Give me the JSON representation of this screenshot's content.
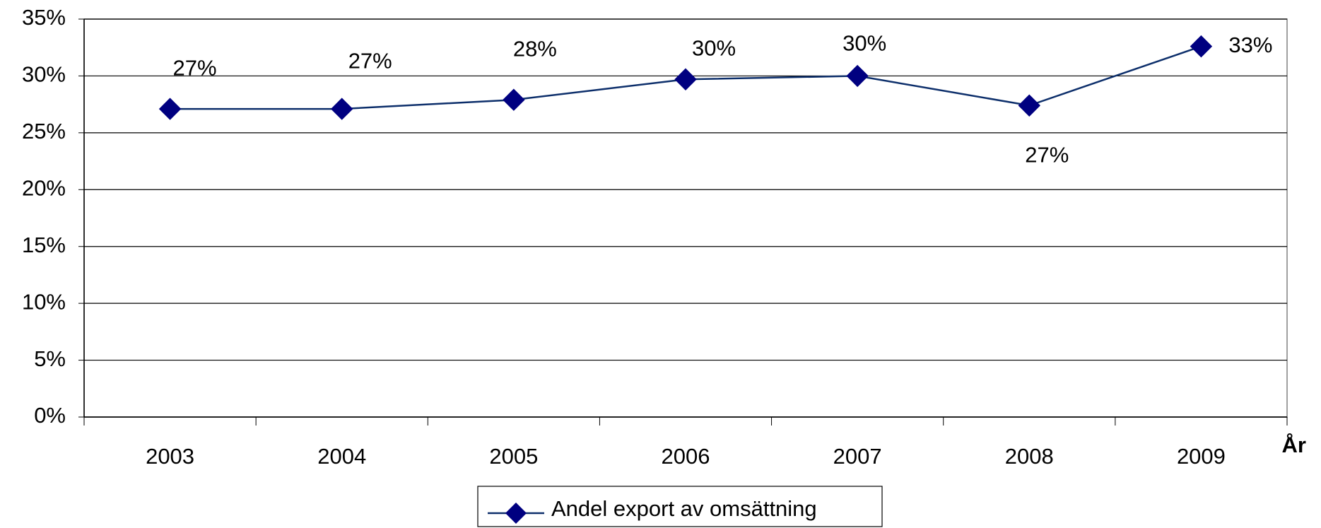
{
  "chart_data": {
    "type": "line",
    "categories": [
      "2003",
      "2004",
      "2005",
      "2006",
      "2007",
      "2008",
      "2009"
    ],
    "series": [
      {
        "name": "Andel export av omsättning",
        "color": "#000080",
        "values": [
          27.1,
          27.1,
          27.9,
          29.7,
          30.0,
          27.4,
          32.6
        ],
        "value_labels": [
          "27%",
          "27%",
          "28%",
          "30%",
          "30%",
          "27%",
          "33%"
        ]
      }
    ],
    "ylim": [
      0,
      35
    ],
    "yticks": [
      {
        "value": 0,
        "label": "0%"
      },
      {
        "value": 5,
        "label": "5%"
      },
      {
        "value": 10,
        "label": "10%"
      },
      {
        "value": 15,
        "label": "15%"
      },
      {
        "value": 20,
        "label": "20%"
      },
      {
        "value": 25,
        "label": "25%"
      },
      {
        "value": 30,
        "label": "30%"
      },
      {
        "value": 35,
        "label": "35%"
      }
    ],
    "x_label": "År",
    "grid": true,
    "legend": "bottom"
  }
}
